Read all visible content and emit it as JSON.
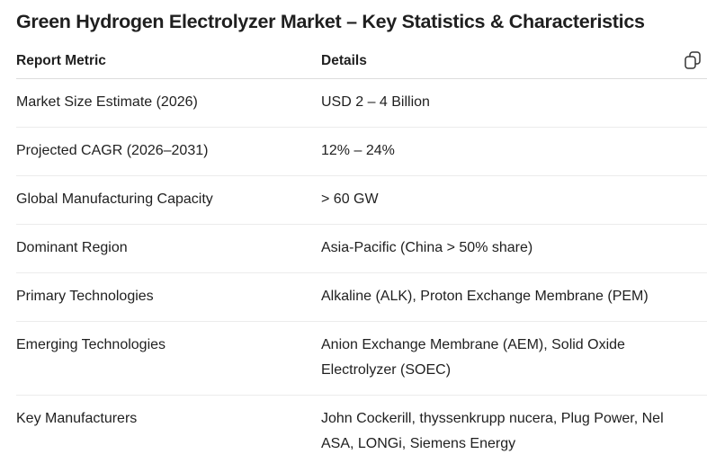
{
  "title": "Green Hydrogen Electrolyzer Market – Key Statistics & Characteristics",
  "table": {
    "headers": [
      "Report Metric",
      "Details"
    ],
    "rows": [
      [
        "Market Size Estimate (2026)",
        "USD 2 – 4 Billion"
      ],
      [
        "Projected CAGR (2026–2031)",
        "12% – 24%"
      ],
      [
        "Global Manufacturing Capacity",
        "> 60 GW"
      ],
      [
        "Dominant Region",
        "Asia-Pacific (China > 50% share)"
      ],
      [
        "Primary Technologies",
        "Alkaline (ALK), Proton Exchange Membrane (PEM)"
      ],
      [
        "Emerging Technologies",
        "Anion Exchange Membrane (AEM), Solid Oxide Electrolyzer (SOEC)"
      ],
      [
        "Key Manufacturers",
        "John Cockerill, thyssenkrupp nucera, Plug Power, Nel ASA, LONGi, Siemens Energy"
      ]
    ]
  }
}
